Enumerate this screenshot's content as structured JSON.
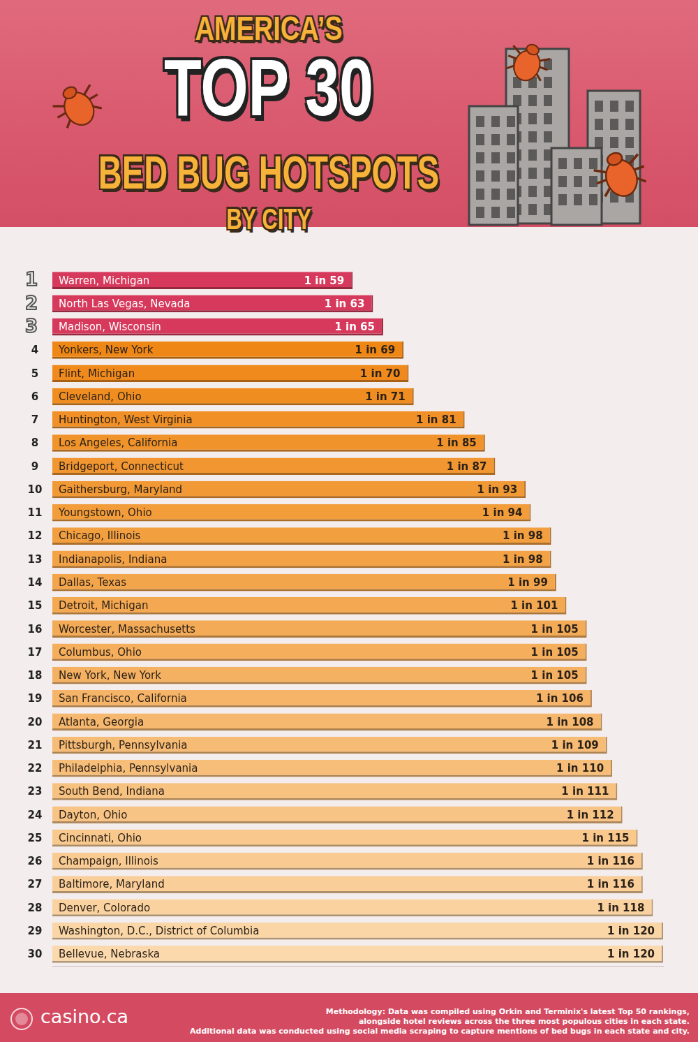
{
  "chart_data": {
    "type": "bar",
    "orientation": "horizontal",
    "title": [
      "AMERICA’S",
      "TOP 30",
      "BED BUG HOTSPOTS",
      "BY CITY"
    ],
    "ranks": [
      1,
      2,
      3,
      4,
      5,
      6,
      7,
      8,
      9,
      10,
      11,
      12,
      13,
      14,
      15,
      16,
      17,
      18,
      19,
      20,
      21,
      22,
      23,
      24,
      25,
      26,
      27,
      28,
      29,
      30
    ],
    "categories": [
      "Warren, Michigan",
      "North Las Vegas, Nevada",
      "Madison, Wisconsin",
      "Yonkers, New York",
      "Flint, Michigan",
      "Cleveland, Ohio",
      "Huntington, West Virginia",
      "Los Angeles, California",
      "Bridgeport, Connecticut",
      "Gaithersburg, Maryland",
      "Youngstown, Ohio",
      "Chicago, Illinois",
      "Indianapolis, Indiana",
      "Dallas, Texas",
      "Detroit, Michigan",
      "Worcester, Massachusetts",
      "Columbus, Ohio",
      "New York, New York",
      "San Francisco, California",
      "Atlanta, Georgia",
      "Pittsburgh, Pennsylvania",
      "Philadelphia, Pennsylvania",
      "South Bend, Indiana",
      "Dayton, Ohio",
      "Cincinnati, Ohio",
      "Champaign, Illinois",
      "Baltimore, Maryland",
      "Denver, Colorado",
      "Washington, D.C., District of Columbia",
      "Bellevue, Nebraska"
    ],
    "values": [
      59,
      63,
      65,
      69,
      70,
      71,
      81,
      85,
      87,
      93,
      94,
      98,
      98,
      99,
      101,
      105,
      105,
      105,
      106,
      108,
      109,
      110,
      111,
      112,
      115,
      116,
      116,
      118,
      120,
      120
    ],
    "value_labels": [
      "1 in 59",
      "1 in 63",
      "1 in 65",
      "1 in 69",
      "1 in 70",
      "1 in 71",
      "1 in 81",
      "1 in 85",
      "1 in 87",
      "1 in 93",
      "1 in 94",
      "1 in 98",
      "1 in 98",
      "1 in 99",
      "1 in 101",
      "1 in 105",
      "1 in 105",
      "1 in 105",
      "1 in 106",
      "1 in 108",
      "1 in 109",
      "1 in 110",
      "1 in 111",
      "1 in 112",
      "1 in 115",
      "1 in 116",
      "1 in 116",
      "1 in 118",
      "1 in 120",
      "1 in 120"
    ],
    "colors": [
      "#d6395b",
      "#d6395b",
      "#d6395b",
      "#ef8716",
      "#f08a1c",
      "#f08d20",
      "#f09026",
      "#f0932b",
      "#f19630",
      "#f19935",
      "#f29c3a",
      "#f29f40",
      "#f3a245",
      "#f3a54b",
      "#f4a851",
      "#f4ab57",
      "#f5ae5c",
      "#f5b162",
      "#f5b468",
      "#f6b86e",
      "#f6bb74",
      "#f7be7a",
      "#f7c180",
      "#f8c486",
      "#f8c88c",
      "#f9cb93",
      "#f9ce99",
      "#fad2a0",
      "#fad5a6",
      "#fbd9ad"
    ],
    "xlim": [
      0,
      120
    ],
    "grid": false,
    "data_labels": true,
    "tick_labels": false
  },
  "footer": {
    "brand": "casino.ca",
    "methodology": [
      "Methodology: Data was compiled using Orkin and Terminix's latest Top 50 rankings,",
      "alongside hotel reviews across the three most populous cities in each state.",
      "Additional data was conducted using social media scraping to capture mentions of bed bugs in each state and city."
    ]
  }
}
